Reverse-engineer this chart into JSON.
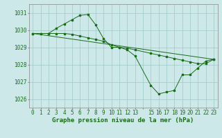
{
  "title": "Graphe pression niveau de la mer (hPa)",
  "bg_color": "#cce8e8",
  "grid_color": "#a0c8c8",
  "line_color": "#1a6b1a",
  "ylim": [
    1025.5,
    1031.5
  ],
  "yticks": [
    1026,
    1027,
    1028,
    1029,
    1030,
    1031
  ],
  "xlim": [
    -0.5,
    23.5
  ],
  "series": [
    {
      "x": [
        0,
        1,
        2,
        3,
        4,
        5,
        6,
        7,
        8,
        9,
        10,
        11,
        12,
        13,
        15,
        16,
        17,
        18,
        19,
        20,
        21,
        22,
        23
      ],
      "y": [
        1029.8,
        1029.8,
        1029.8,
        1030.1,
        1030.35,
        1030.6,
        1030.85,
        1030.9,
        1030.3,
        1029.5,
        1029.0,
        1029.0,
        1028.85,
        1028.5,
        1026.8,
        1026.3,
        1026.4,
        1026.5,
        1027.4,
        1027.4,
        1027.8,
        1028.2,
        1028.3
      ]
    },
    {
      "x": [
        0,
        1,
        2,
        3,
        4,
        5,
        6,
        7,
        8,
        9,
        10,
        11,
        12,
        13,
        15,
        16,
        17,
        18,
        19,
        20,
        21,
        22,
        23
      ],
      "y": [
        1029.8,
        1029.8,
        1029.8,
        1029.8,
        1029.8,
        1029.75,
        1029.65,
        1029.55,
        1029.45,
        1029.35,
        1029.15,
        1029.0,
        1028.95,
        1028.85,
        1028.65,
        1028.55,
        1028.45,
        1028.35,
        1028.25,
        1028.15,
        1028.05,
        1028.05,
        1028.3
      ]
    },
    {
      "x": [
        0,
        23
      ],
      "y": [
        1029.8,
        1028.3
      ]
    }
  ],
  "font_color": "#1a6b1a",
  "title_fontsize": 6.5,
  "tick_fontsize": 5.5
}
